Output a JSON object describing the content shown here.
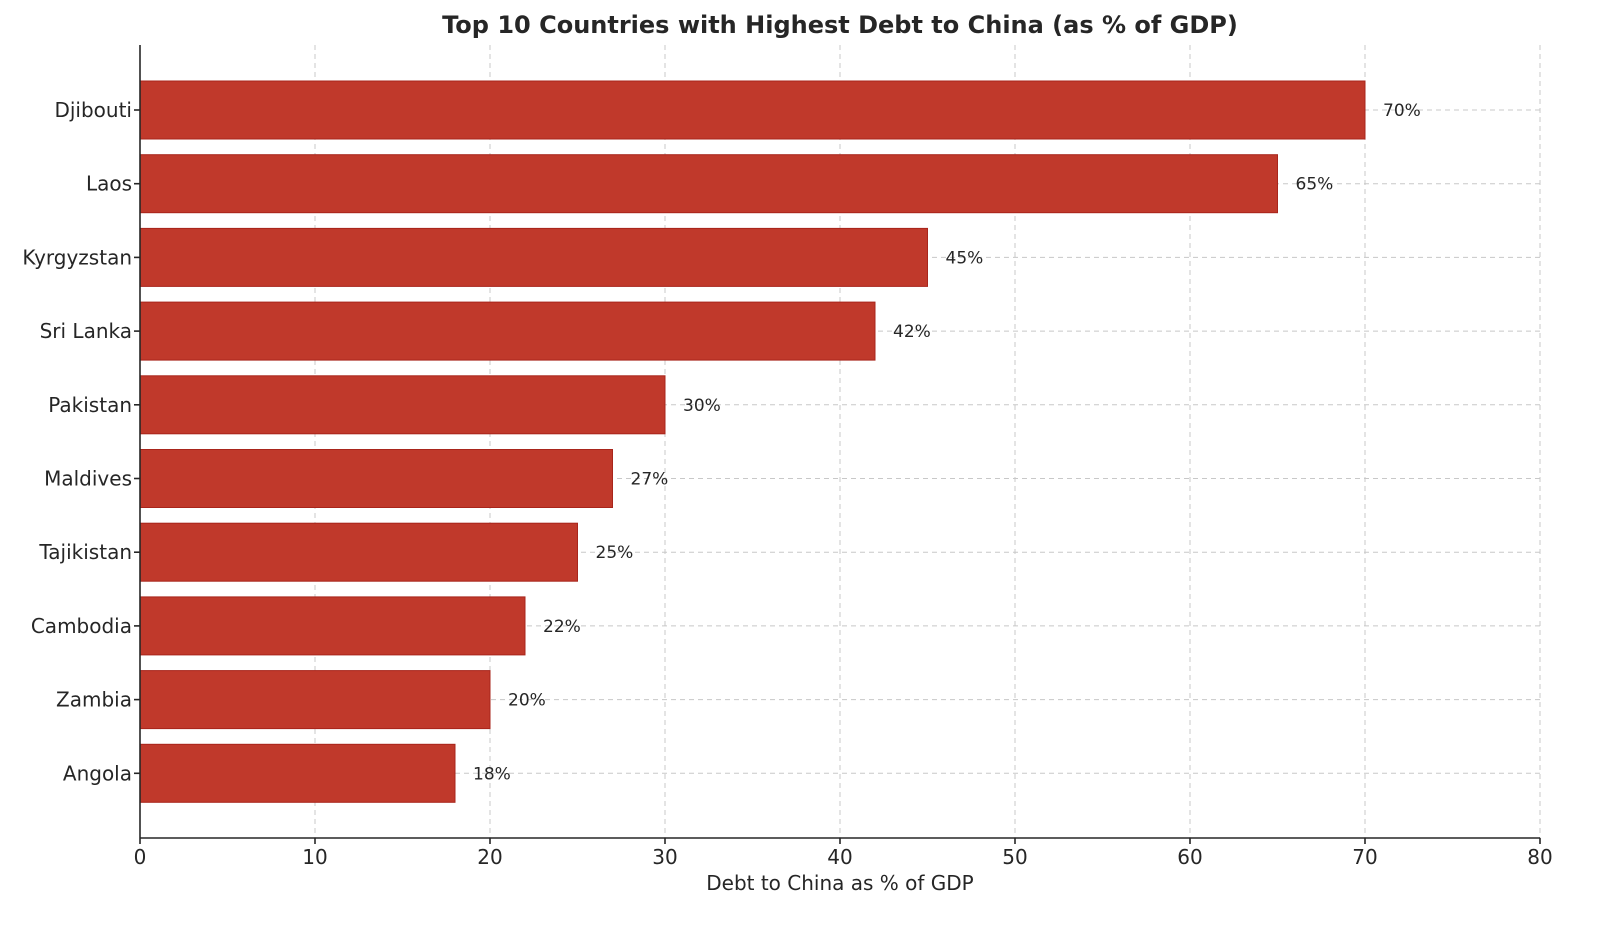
{
  "chart_data": {
    "type": "bar",
    "orientation": "horizontal",
    "title": "Top 10 Countries with Highest Debt to China (as % of GDP)",
    "xlabel": "Debt to China as % of GDP",
    "ylabel": "",
    "categories": [
      "Djibouti",
      "Laos",
      "Kyrgyzstan",
      "Sri Lanka",
      "Pakistan",
      "Maldives",
      "Tajikistan",
      "Cambodia",
      "Zambia",
      "Angola"
    ],
    "values": [
      70,
      65,
      45,
      42,
      30,
      27,
      25,
      22,
      20,
      18
    ],
    "data_labels": [
      "70%",
      "65%",
      "45%",
      "42%",
      "30%",
      "27%",
      "25%",
      "22%",
      "20%",
      "18%"
    ],
    "xlim": [
      0,
      80
    ],
    "xticks": [
      0,
      10,
      20,
      30,
      40,
      50,
      60,
      70,
      80
    ],
    "grid": true,
    "bar_color": "#c0392b"
  }
}
